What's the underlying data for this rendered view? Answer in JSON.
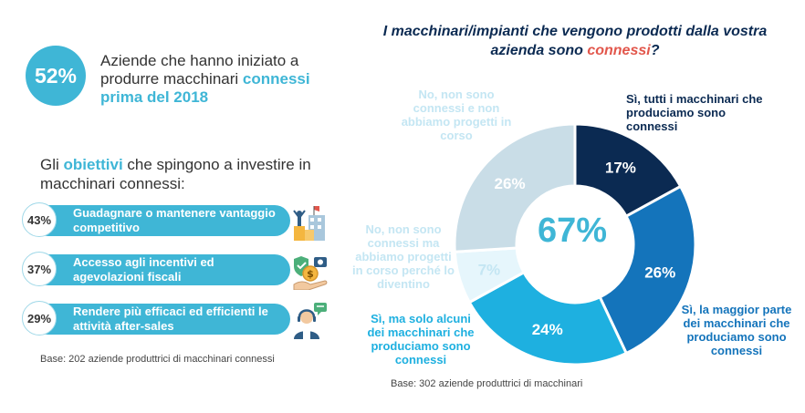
{
  "left": {
    "badge_value": "52%",
    "intro_text_1": "Aziende che hanno iniziato a produrre macchinari ",
    "intro_highlight": "connessi prima del 2018",
    "goals_title_1": "Gli ",
    "goals_title_highlight": "obiettivi",
    "goals_title_2": " che spingono a investire in macchinari connessi:",
    "goals": [
      {
        "pct": "43%",
        "label": "Guadagnare o mantenere vantaggio competitivo",
        "icon": "podium-icon"
      },
      {
        "pct": "37%",
        "label": "Accesso agli incentivi ed agevolazioni fiscali",
        "icon": "incentive-money-icon"
      },
      {
        "pct": "29%",
        "label": "Rendere più efficaci ed efficienti le attività after-sales",
        "icon": "support-agent-icon"
      }
    ],
    "base": "Base: 202 aziende produttrici di macchinari connessi"
  },
  "chart_data": {
    "type": "pie",
    "title_1": "I macchinari/impianti che vengono prodotti dalla vostra azienda sono ",
    "title_highlight": "connessi",
    "title_end": "?",
    "center_value": "67%",
    "slices": [
      {
        "label": "Sì, tutti i macchinari che produciamo sono connessi",
        "value": 17,
        "value_label": "17%",
        "color": "#0b2a52",
        "text_color": "#ffffff",
        "label_color": "#0b2a52"
      },
      {
        "label": "Sì, la maggior parte dei macchinari che produciamo sono connessi",
        "value": 26,
        "value_label": "26%",
        "color": "#1474bb",
        "text_color": "#ffffff",
        "label_color": "#1474bb"
      },
      {
        "label": "Sì, ma solo alcuni dei macchinari che produciamo sono connessi",
        "value": 24,
        "value_label": "24%",
        "color": "#1eb0e0",
        "text_color": "#ffffff",
        "label_color": "#1eb0e0"
      },
      {
        "label": "No, non sono connessi ma abbiamo progetti in corso perché lo diventino",
        "value": 7,
        "value_label": "7%",
        "color": "#e6f6fc",
        "text_color": "#c4e6f3",
        "label_color": "#c4e6f3"
      },
      {
        "label": "No, non sono connessi e non abbiamo progetti in corso",
        "value": 26,
        "value_label": "26%",
        "color": "#c9dde7",
        "text_color": "#ffffff",
        "label_color": "#c4e6f3"
      }
    ],
    "base": "Base: 302 aziende produttrici di macchinari"
  },
  "colors": {
    "accent": "#3fb6d6",
    "title": "#0b2a52",
    "highlight_red": "#e2574c"
  }
}
